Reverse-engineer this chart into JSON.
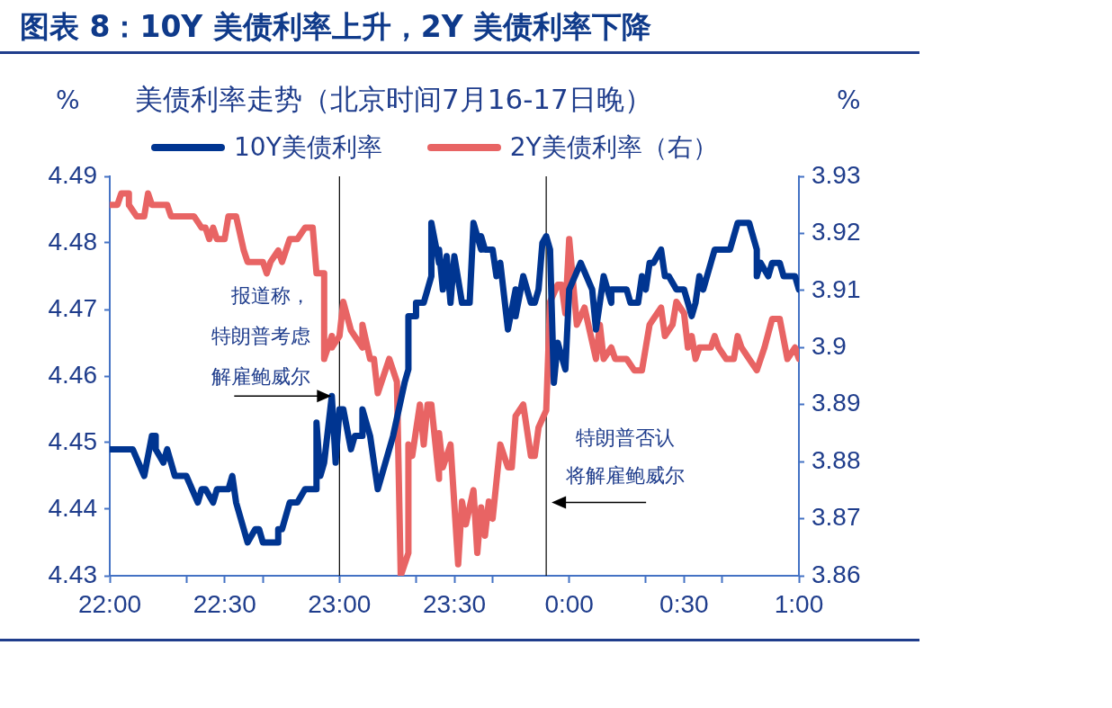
{
  "chart_data": {
    "type": "line",
    "title": "图表 8：10Y 美债利率上升，2Y 美债利率下降",
    "subtitle": "美债利率走势（北京时间7月16-17日晚）",
    "ylabel": "%",
    "y2label": "%",
    "legend": "top",
    "marker": "none",
    "line_style": "solid",
    "xlim": [
      "--07-16T22:00",
      "--07-17T01:00"
    ],
    "xticks": [
      {
        "value": "--07-16T22:00",
        "label": "22:00"
      },
      {
        "value": "--07-16T22:20",
        "label": null
      },
      {
        "value": "--07-16T22:30",
        "label": "22:30"
      },
      {
        "value": "--07-16T22:40",
        "label": null
      },
      {
        "value": "--07-16T23:00",
        "label": "23:00"
      },
      {
        "value": "--07-16T23:20",
        "label": null
      },
      {
        "value": "--07-16T23:30",
        "label": "23:30"
      },
      {
        "value": "--07-16T23:40",
        "label": null
      },
      {
        "value": "--07-17T00:00",
        "label": "0:00"
      },
      {
        "value": "--07-17T00:20",
        "label": null
      },
      {
        "value": "--07-17T00:30",
        "label": "0:30"
      },
      {
        "value": "--07-17T00:40",
        "label": null
      },
      {
        "value": "--07-17T01:00",
        "label": "1:00"
      }
    ],
    "ylim": [
      4.43,
      4.49
    ],
    "yticks": [
      4.43,
      4.44,
      4.45,
      4.46,
      4.47,
      4.48,
      4.49
    ],
    "y2lim": [
      3.86,
      3.93
    ],
    "y2ticks": [
      3.86,
      3.87,
      3.88,
      3.89,
      3.9,
      3.91,
      3.92,
      3.93
    ],
    "series": [
      {
        "name": "10Y美债利率",
        "color": "#003591",
        "x": [
          "--07-16T22:00",
          "--07-16T22:06",
          "--07-16T22:09",
          "--07-16T22:11",
          "--07-16T22:12",
          "--07-16T22:12",
          "--07-16T22:14",
          "--07-16T22:15",
          "--07-16T22:17",
          "--07-16T22:20",
          "--07-16T22:23",
          "--07-16T22:24",
          "--07-16T22:25",
          "--07-16T22:27",
          "--07-16T22:28",
          "--07-16T22:31",
          "--07-16T22:32",
          "--07-16T22:33",
          "--07-16T22:36",
          "--07-16T22:38",
          "--07-16T22:39",
          "--07-16T22:40",
          "--07-16T22:44",
          "--07-16T22:44",
          "--07-16T22:45",
          "--07-16T22:47",
          "--07-16T22:49",
          "--07-16T22:51",
          "--07-16T22:54",
          "--07-16T22:54",
          "--07-16T22:55",
          "--07-16T22:56",
          "--07-16T22:58",
          "--07-16T22:59",
          "--07-16T23:00",
          "--07-16T23:01",
          "--07-16T23:03",
          "--07-16T23:04",
          "--07-16T23:06",
          "--07-16T23:06",
          "--07-16T23:08",
          "--07-16T23:10",
          "--07-16T23:14",
          "--07-16T23:17",
          "--07-16T23:18",
          "--07-16T23:18",
          "--07-16T23:20",
          "--07-16T23:20",
          "--07-16T23:22",
          "--07-16T23:24",
          "--07-16T23:24",
          "--07-16T23:26",
          "--07-16T23:26",
          "--07-16T23:27",
          "--07-16T23:28",
          "--07-16T23:29",
          "--07-16T23:30",
          "--07-16T23:32",
          "--07-16T23:34",
          "--07-16T23:35",
          "--07-16T23:37",
          "--07-16T23:37",
          "--07-16T23:38",
          "--07-16T23:40",
          "--07-16T23:41",
          "--07-16T23:42",
          "--07-16T23:44",
          "--07-16T23:46",
          "--07-16T23:46",
          "--07-16T23:48",
          "--07-16T23:50",
          "--07-16T23:51",
          "--07-16T23:52",
          "--07-16T23:53",
          "--07-16T23:54",
          "--07-16T23:55",
          "--07-16T23:56",
          "--07-16T23:57",
          "--07-16T23:59",
          "--07-17T00:00",
          "--07-17T00:03",
          "--07-17T00:06",
          "--07-17T00:07",
          "--07-17T00:09",
          "--07-17T00:11",
          "--07-17T00:11",
          "--07-17T00:15",
          "--07-17T00:16",
          "--07-17T00:18",
          "--07-17T00:19",
          "--07-17T00:20",
          "--07-17T00:21",
          "--07-17T00:22",
          "--07-17T00:24",
          "--07-17T00:25",
          "--07-17T00:26",
          "--07-17T00:28",
          "--07-17T00:30",
          "--07-17T00:32",
          "--07-17T00:33",
          "--07-17T00:34",
          "--07-17T00:35",
          "--07-17T00:38",
          "--07-17T00:42",
          "--07-17T00:44",
          "--07-17T00:47",
          "--07-17T00:49",
          "--07-17T00:49",
          "--07-17T00:50",
          "--07-17T00:52",
          "--07-17T00:53",
          "--07-17T00:55",
          "--07-17T00:56",
          "--07-17T00:59",
          "--07-17T01:00"
        ],
        "values": [
          4.449,
          4.449,
          4.445,
          4.451,
          4.451,
          4.449,
          4.447,
          4.449,
          4.445,
          4.445,
          4.441,
          4.443,
          4.443,
          4.441,
          4.443,
          4.443,
          4.445,
          4.441,
          4.435,
          4.437,
          4.437,
          4.435,
          4.435,
          4.437,
          4.437,
          4.441,
          4.441,
          4.443,
          4.443,
          4.453,
          4.445,
          4.447,
          4.457,
          4.447,
          4.455,
          4.455,
          4.449,
          4.451,
          4.451,
          4.455,
          4.451,
          4.443,
          4.451,
          4.459,
          4.461,
          4.469,
          4.469,
          4.471,
          4.471,
          4.475,
          4.483,
          4.477,
          4.479,
          4.473,
          4.478,
          4.471,
          4.478,
          4.471,
          4.471,
          4.483,
          4.479,
          4.481,
          4.479,
          4.479,
          4.475,
          4.477,
          4.467,
          4.473,
          4.469,
          4.475,
          4.471,
          4.471,
          4.473,
          4.48,
          4.481,
          4.479,
          4.459,
          4.465,
          4.461,
          4.473,
          4.477,
          4.473,
          4.467,
          4.475,
          4.471,
          4.473,
          4.473,
          4.471,
          4.471,
          4.475,
          4.473,
          4.477,
          4.477,
          4.479,
          4.475,
          4.475,
          4.473,
          4.473,
          4.469,
          4.471,
          4.475,
          4.473,
          4.479,
          4.479,
          4.483,
          4.483,
          4.479,
          4.475,
          4.477,
          4.475,
          4.477,
          4.477,
          4.475,
          4.475,
          4.473
        ]
      },
      {
        "name": "2Y美债利率（右）",
        "color": "#e86464",
        "axis": "y2",
        "x": [
          "--07-16T22:00",
          "--07-16T22:02",
          "--07-16T22:03",
          "--07-16T22:05",
          "--07-16T22:05",
          "--07-16T22:07",
          "--07-16T22:09",
          "--07-16T22:10",
          "--07-16T22:11",
          "--07-16T22:15",
          "--07-16T22:16",
          "--07-16T22:22",
          "--07-16T22:24",
          "--07-16T22:25",
          "--07-16T22:26",
          "--07-16T22:27",
          "--07-16T22:28",
          "--07-16T22:30",
          "--07-16T22:31",
          "--07-16T22:33",
          "--07-16T22:35",
          "--07-16T22:36",
          "--07-16T22:40",
          "--07-16T22:41",
          "--07-16T22:42",
          "--07-16T22:44",
          "--07-16T22:45",
          "--07-16T22:47",
          "--07-16T22:49",
          "--07-16T22:51",
          "--07-16T22:53",
          "--07-16T22:54",
          "--07-16T22:56",
          "--07-16T22:56",
          "--07-16T22:58",
          "--07-16T22:58",
          "--07-16T23:00",
          "--07-16T23:01",
          "--07-16T23:03",
          "--07-16T23:04",
          "--07-16T23:06",
          "--07-16T23:06",
          "--07-16T23:08",
          "--07-16T23:09",
          "--07-16T23:10",
          "--07-16T23:13",
          "--07-16T23:15",
          "--07-16T23:16",
          "--07-16T23:18",
          "--07-16T23:18",
          "--07-16T23:19",
          "--07-16T23:21",
          "--07-16T23:22",
          "--07-16T23:23",
          "--07-16T23:24",
          "--07-16T23:26",
          "--07-16T23:26",
          "--07-16T23:27",
          "--07-16T23:29",
          "--07-16T23:31",
          "--07-16T23:32",
          "--07-16T23:33",
          "--07-16T23:35",
          "--07-16T23:35",
          "--07-16T23:36",
          "--07-16T23:37",
          "--07-16T23:38",
          "--07-16T23:39",
          "--07-16T23:40",
          "--07-16T23:42",
          "--07-16T23:44",
          "--07-16T23:45",
          "--07-16T23:46",
          "--07-16T23:48",
          "--07-16T23:50",
          "--07-16T23:51",
          "--07-16T23:52",
          "--07-16T23:54",
          "--07-16T23:55",
          "--07-16T23:57",
          "--07-16T23:58",
          "--07-16T23:59",
          "--07-17T00:00",
          "--07-17T00:02",
          "--07-17T00:04",
          "--07-17T00:05",
          "--07-17T00:07",
          "--07-17T00:08",
          "--07-17T00:09",
          "--07-17T00:11",
          "--07-17T00:12",
          "--07-17T00:15",
          "--07-17T00:17",
          "--07-17T00:19",
          "--07-17T00:20",
          "--07-17T00:21",
          "--07-17T00:22",
          "--07-17T00:24",
          "--07-17T00:25",
          "--07-17T00:27",
          "--07-17T00:28",
          "--07-17T00:30",
          "--07-17T00:31",
          "--07-17T00:32",
          "--07-17T00:33",
          "--07-17T00:34",
          "--07-17T00:37",
          "--07-17T00:38",
          "--07-17T00:39",
          "--07-17T00:41",
          "--07-17T00:43",
          "--07-17T00:44",
          "--07-17T00:45",
          "--07-17T00:47",
          "--07-17T00:49",
          "--07-17T00:51",
          "--07-17T00:53",
          "--07-17T00:55",
          "--07-17T00:57",
          "--07-17T00:59",
          "--07-17T01:00"
        ],
        "values": [
          3.925,
          3.925,
          3.927,
          3.927,
          3.925,
          3.923,
          3.923,
          3.927,
          3.925,
          3.925,
          3.923,
          3.923,
          3.921,
          3.921,
          3.919,
          3.921,
          3.919,
          3.919,
          3.923,
          3.923,
          3.917,
          3.915,
          3.915,
          3.913,
          3.915,
          3.917,
          3.915,
          3.919,
          3.919,
          3.921,
          3.921,
          3.913,
          3.913,
          3.898,
          3.902,
          3.9,
          3.902,
          3.908,
          3.903,
          3.902,
          3.9,
          3.904,
          3.898,
          3.898,
          3.892,
          3.898,
          3.894,
          3.86,
          3.864,
          3.883,
          3.881,
          3.89,
          3.883,
          3.89,
          3.89,
          3.877,
          3.885,
          3.879,
          3.883,
          3.862,
          3.873,
          3.869,
          3.875,
          3.875,
          3.864,
          3.872,
          3.867,
          3.873,
          3.87,
          3.883,
          3.879,
          3.879,
          3.888,
          3.89,
          3.881,
          3.881,
          3.886,
          3.889,
          3.908,
          3.911,
          3.911,
          3.906,
          3.919,
          3.904,
          3.907,
          3.904,
          3.898,
          3.904,
          3.898,
          3.9,
          3.898,
          3.898,
          3.896,
          3.896,
          3.9,
          3.904,
          3.905,
          3.907,
          3.902,
          3.904,
          3.908,
          3.906,
          3.9,
          3.902,
          3.898,
          3.9,
          3.9,
          3.902,
          3.9,
          3.898,
          3.898,
          3.902,
          3.9,
          3.898,
          3.896,
          3.9,
          3.905,
          3.905,
          3.898,
          3.9,
          3.898
        ]
      }
    ],
    "ref_lines": [
      {
        "axis": "x",
        "value": "--07-16T23:00",
        "color": "#000000"
      },
      {
        "axis": "x",
        "value": "--07-16T23:54",
        "color": "#000000"
      }
    ],
    "annotations": [
      {
        "text": "报道称，特朗普考虑解雇鲍威尔",
        "x": "--07-16T23:00",
        "y": 4.457
      },
      {
        "text": "特朗普否认将解雇鲍威尔",
        "x": "--07-16T23:54",
        "y": 4.441
      }
    ]
  }
}
